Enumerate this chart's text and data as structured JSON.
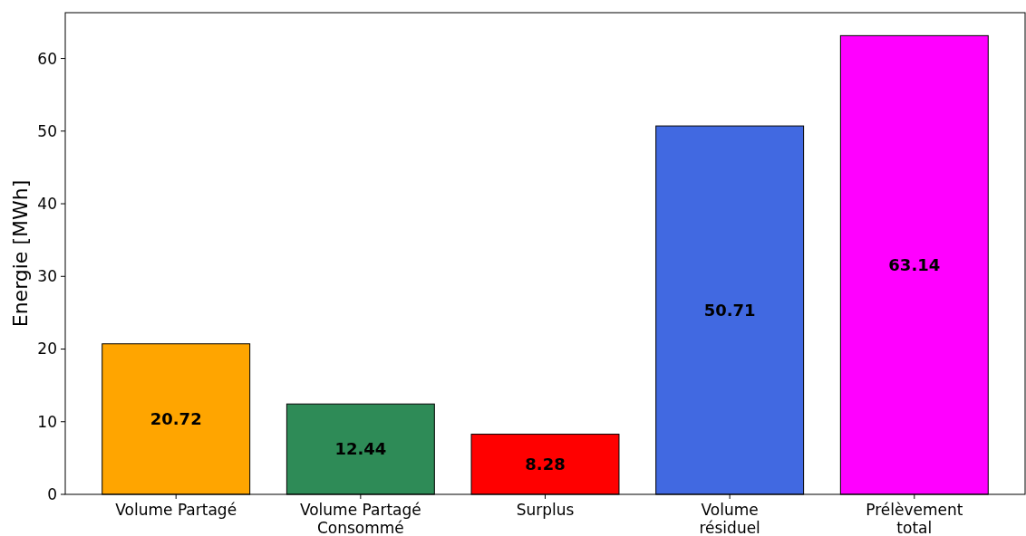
{
  "chart_data": {
    "type": "bar",
    "ylabel": "Energie [MWh]",
    "categories": [
      "Volume Partagé",
      "Volume Partagé\nConsommé",
      "Surplus",
      "Volume\nrésiduel",
      "Prélèvement\ntotal"
    ],
    "values": [
      20.72,
      12.44,
      8.28,
      50.71,
      63.14
    ],
    "colors": [
      "#ffa500",
      "#2e8b57",
      "#ff0000",
      "#4169e1",
      "#ff00ff"
    ],
    "ylim": [
      0,
      66.3
    ],
    "yticks": [
      0,
      10,
      20,
      30,
      40,
      50,
      60
    ],
    "grid": false,
    "data_labels": true
  }
}
